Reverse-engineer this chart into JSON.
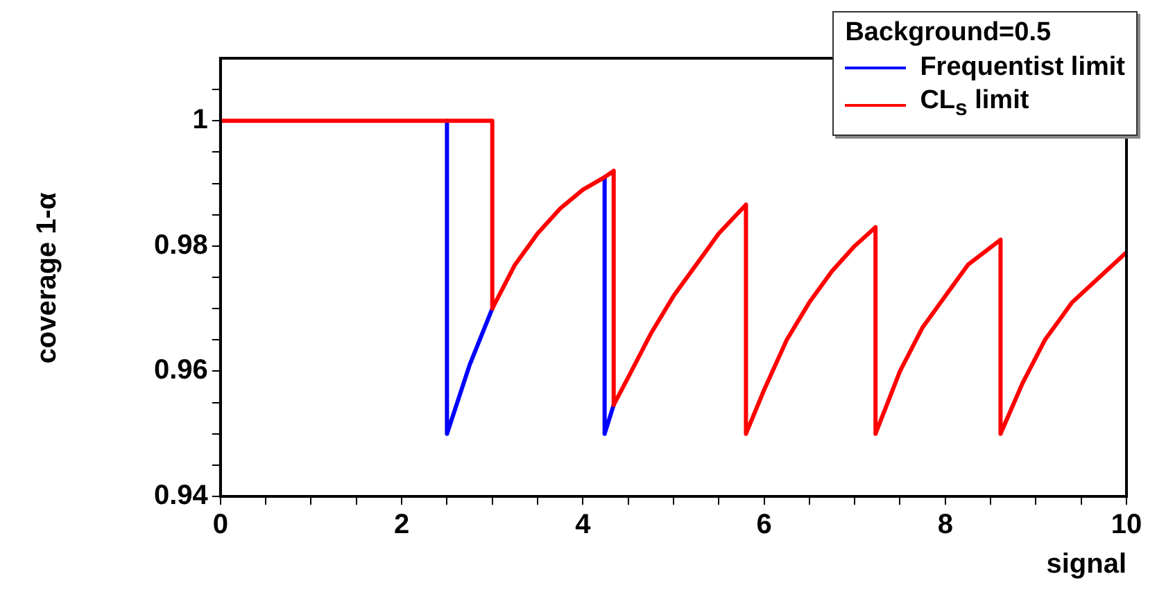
{
  "chart_data": {
    "type": "line",
    "xlabel": "signal",
    "ylabel": "coverage 1-α",
    "legend_title": "Background=0.5",
    "legend": "top right",
    "grid": false,
    "marker": "none",
    "line_style": "solid",
    "xlim": [
      0,
      10
    ],
    "xticks": [
      0,
      {
        "value": 0.5,
        "label": null
      },
      2,
      {
        "value": 2.5,
        "label": null
      },
      4,
      {
        "value": 4.5,
        "label": null
      },
      6,
      {
        "value": 6.5,
        "label": null
      },
      8,
      {
        "value": 8.5,
        "label": null
      },
      10,
      {
        "value": 1,
        "label": null
      },
      {
        "value": 1.5,
        "label": null
      },
      {
        "value": 3,
        "label": null
      },
      {
        "value": 3.5,
        "label": null
      },
      {
        "value": 5,
        "label": null
      },
      {
        "value": 5.5,
        "label": null
      },
      {
        "value": 7,
        "label": null
      },
      {
        "value": 7.5,
        "label": null
      },
      {
        "value": 9,
        "label": null
      },
      {
        "value": 9.5,
        "label": null
      }
    ],
    "ylim": [
      0.94,
      1.01
    ],
    "yticks": [
      0.94,
      0.96,
      0.98,
      1,
      {
        "value": 0.945,
        "label": null
      },
      {
        "value": 0.95,
        "label": null
      },
      {
        "value": 0.955,
        "label": null
      },
      {
        "value": 0.965,
        "label": null
      },
      {
        "value": 0.97,
        "label": null
      },
      {
        "value": 0.975,
        "label": null
      },
      {
        "value": 0.985,
        "label": null
      },
      {
        "value": 0.99,
        "label": null
      },
      {
        "value": 0.995,
        "label": null
      },
      {
        "value": 1.005,
        "label": null
      }
    ],
    "series": [
      {
        "name": "Frequentist limit",
        "color": "#0000ff",
        "x": [
          2.5,
          2.5,
          2.75,
          3.0,
          3.5,
          4.24,
          4.24,
          4.34
        ],
        "values": [
          1,
          0.95,
          0.961,
          0.97,
          null,
          0.991,
          0.95,
          0.9546
        ]
      },
      {
        "name": "CL$_{s}$ limit",
        "color": "#ff0000",
        "x": [
          0,
          3.0,
          3.0,
          3.25,
          3.5,
          3.75,
          4.0,
          4.24,
          4.34,
          4.34,
          4.5,
          4.75,
          5.0,
          5.25,
          5.5,
          5.8,
          5.8,
          6.0,
          6.25,
          6.5,
          6.75,
          7.0,
          7.23,
          7.23,
          7.5,
          7.75,
          8.0,
          8.25,
          8.61,
          8.61,
          8.85,
          9.1,
          9.4,
          9.7,
          10
        ],
        "values": [
          1,
          1,
          0.97,
          0.977,
          0.982,
          0.986,
          0.989,
          0.991,
          0.992,
          0.9546,
          0.959,
          0.966,
          0.972,
          0.977,
          0.982,
          0.9866,
          0.95,
          0.957,
          0.965,
          0.971,
          0.976,
          0.98,
          0.983,
          0.95,
          0.96,
          0.967,
          0.972,
          0.977,
          0.981,
          0.95,
          0.958,
          0.965,
          0.971,
          0.975,
          0.979
        ]
      }
    ]
  }
}
